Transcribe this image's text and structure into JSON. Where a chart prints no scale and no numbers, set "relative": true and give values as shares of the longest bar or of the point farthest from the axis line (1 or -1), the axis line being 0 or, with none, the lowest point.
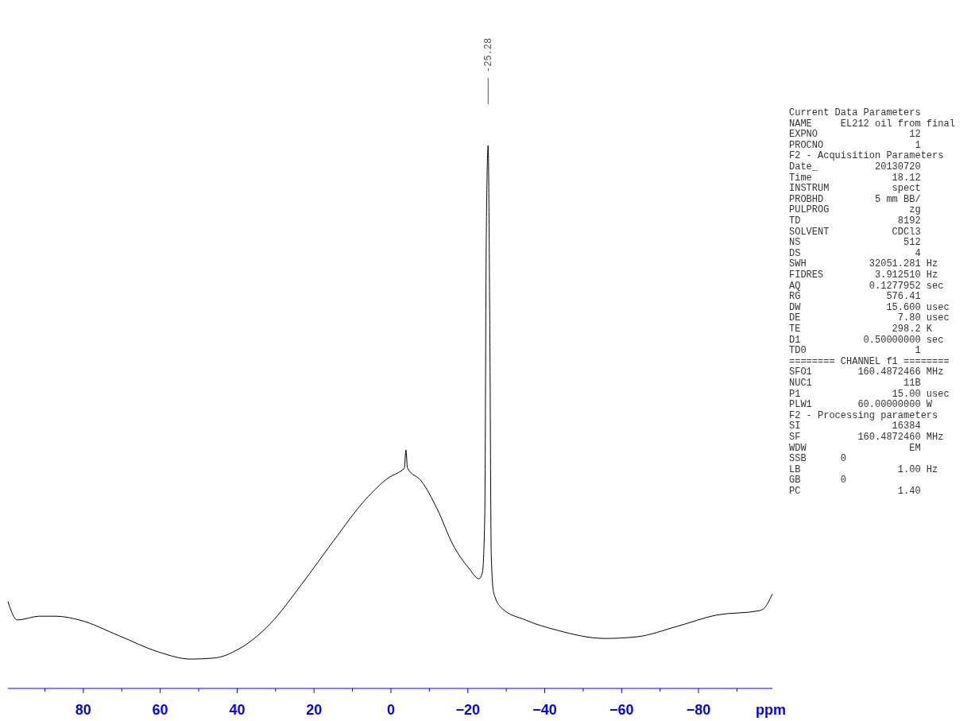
{
  "chart_data": [
    {
      "type": "line",
      "relative": true,
      "xlabel": "ppm",
      "color": "#000000",
      "xlim": [
        99.6,
        -99.2
      ],
      "xticks": [
        {
          "value": 90,
          "label": null
        },
        80,
        {
          "value": 70,
          "label": null
        },
        60,
        {
          "value": 50,
          "label": null
        },
        40,
        {
          "value": 30,
          "label": null
        },
        20,
        {
          "value": 10,
          "label": null
        },
        0,
        {
          "value": -10,
          "label": null
        },
        {
          "value": -20,
          "label": "−20"
        },
        {
          "value": -30,
          "label": null
        },
        {
          "value": -40,
          "label": "−40"
        },
        {
          "value": -50,
          "label": null
        },
        {
          "value": -60,
          "label": "−60"
        },
        {
          "value": -70,
          "label": null
        },
        {
          "value": -80,
          "label": "−80"
        },
        {
          "value": -90,
          "label": null
        }
      ],
      "x": [
        99.6,
        97.2,
        91.4,
        87.2,
        81.0,
        70.7,
        60.4,
        52.1,
        45.9,
        39.7,
        31.4,
        23.2,
        14.9,
        6.6,
        0.4,
        -2.7,
        -3.5,
        -3.9,
        -4.3,
        -7.9,
        -12.0,
        -16.1,
        -20.3,
        -22.9,
        -23.8,
        -24.4,
        -24.8,
        -25.28,
        -25.7,
        -26.1,
        -26.7,
        -28.8,
        -35.0,
        -43.3,
        -55.7,
        -63.9,
        -74.3,
        -84.6,
        -95.7,
        -97.1,
        -99.2
      ],
      "values": [
        0.16,
        0.126,
        0.133,
        0.133,
        0.126,
        0.097,
        0.067,
        0.054,
        0.056,
        0.072,
        0.119,
        0.192,
        0.272,
        0.348,
        0.389,
        0.401,
        0.406,
        0.439,
        0.406,
        0.382,
        0.331,
        0.265,
        0.221,
        0.202,
        0.214,
        0.316,
        0.829,
        1.0,
        0.682,
        0.243,
        0.177,
        0.148,
        0.126,
        0.107,
        0.092,
        0.095,
        0.114,
        0.135,
        0.143,
        0.148,
        0.174
      ],
      "annotations": [
        "-25.28"
      ]
    },
    {
      "type": "other",
      "annotations": [
        "Current Data Parameters",
        "NAME     EL212 oil from final",
        "EXPNO                12",
        "PROCNO                1",
        "F2 - Acquisition Parameters",
        "Date_          20130720",
        "Time              18.12",
        "INSTRUM           spect",
        "PROBHD         5 mm BB/",
        "PULPROG              zg",
        "TD                 8192",
        "SOLVENT           CDCl3",
        "NS                  512",
        "DS                    4",
        "SWH           32051.281 Hz",
        "FIDRES         3.912510 Hz",
        "AQ            0.1277952 sec",
        "RG               576.41",
        "DW               15.600 usec",
        "DE                 7.80 usec",
        "TE                298.2 K",
        "D1           0.50000000 sec",
        "TD0                   1",
        "======== CHANNEL f1 ========",
        "SFO1        160.4872466 MHz",
        "NUC1                11B",
        "P1                15.00 usec",
        "PLW1        60.00000000 W",
        "F2 - Processing parameters",
        "SI                16384",
        "SF          160.4872460 MHz",
        "WDW                  EM",
        "SSB      0",
        "LB                 1.00 Hz",
        "GB       0",
        "PC                 1.40"
      ]
    }
  ]
}
